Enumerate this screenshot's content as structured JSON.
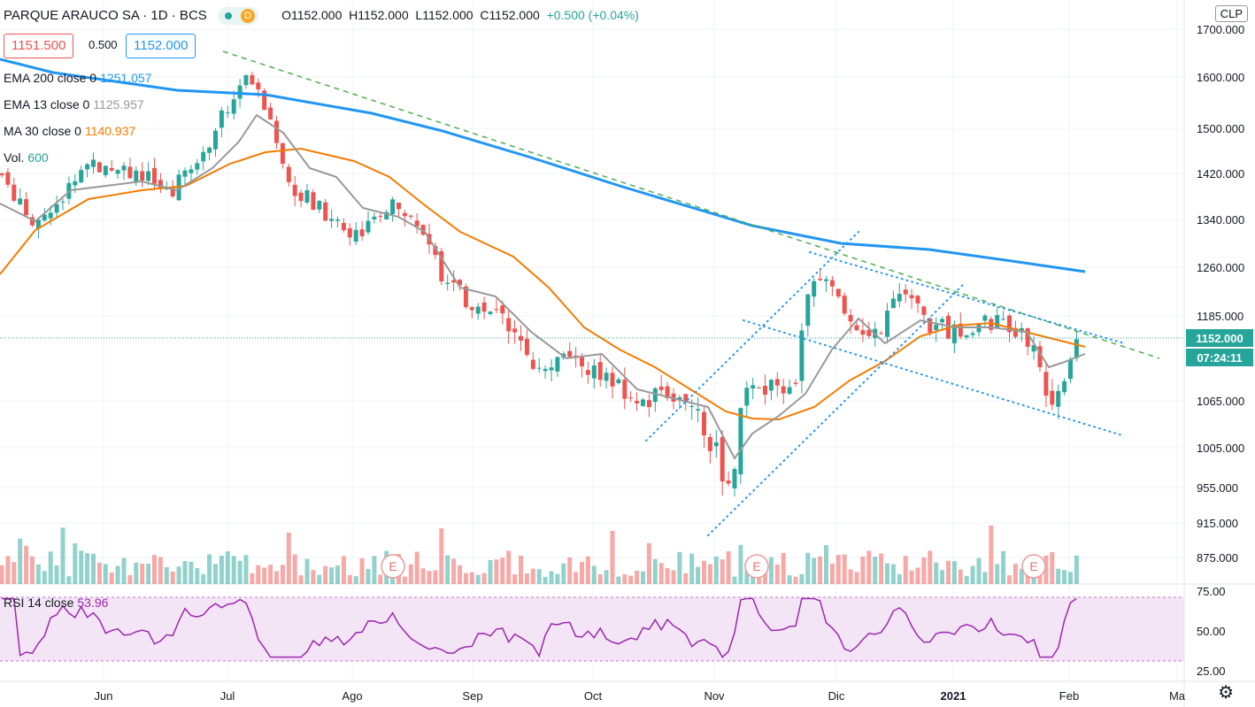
{
  "header": {
    "symbol": "PARQUE ARAUCO SA · 1D · BCS",
    "interval_badge": "D",
    "open": "O1152.000",
    "high": "H1152.000",
    "low": "L1152.000",
    "close": "C1152.000",
    "change": "+0.500 (+0.04%)"
  },
  "trade": {
    "sell": "1151.500",
    "spread": "0.500",
    "buy": "1152.000"
  },
  "currency": "CLP",
  "legends": {
    "ema200_label": "EMA 200 close 0",
    "ema200_value": "1251.057",
    "ema13_label": "EMA 13 close 0",
    "ema13_value": "1125.957",
    "ma30_label": "MA 30 close 0",
    "ma30_value": "1140.937",
    "vol_label": "Vol.",
    "vol_value": "600",
    "rsi_label": "RSI 14 close",
    "rsi_value": "53.96"
  },
  "price_tag": "1152.000",
  "countdown": "07:24:11",
  "colors": {
    "up": "#26a69a",
    "down": "#ef5350",
    "ema200": "#2196f3",
    "ema13": "#999999",
    "ma30": "#f57c00",
    "rsi": "#9c27b0",
    "trend": "#4caf50",
    "channel": "#2196f3"
  },
  "chart_data": {
    "type": "candlestick",
    "title": "PARQUE ARAUCO SA · 1D · BCS",
    "y_ticks": [
      "1700.000",
      "1600.000",
      "1500.000",
      "1420.000",
      "1340.000",
      "1260.000",
      "1185.000",
      "1065.000",
      "1005.000",
      "955.000",
      "915.000",
      "875.000"
    ],
    "x_ticks": [
      "Jun",
      "Jul",
      "Ago",
      "Sep",
      "Oct",
      "Nov",
      "Dic",
      "2021",
      "Feb",
      "Ma"
    ],
    "rsi_ticks": [
      "75.00",
      "50.00",
      "25.00"
    ],
    "events": [
      "E",
      "E",
      "E"
    ],
    "ylim": [
      840,
      1720
    ],
    "last_price": 1152,
    "series": [
      {
        "name": "EMA 200",
        "values_approx": [
          1640,
          1610,
          1580,
          1560,
          1530,
          1500,
          1460,
          1420,
          1380,
          1340,
          1300,
          1280,
          1265,
          1251
        ]
      },
      {
        "name": "EMA 13",
        "values_approx": [
          1350,
          1390,
          1470,
          1440,
          1320,
          1190,
          1090,
          1040,
          990,
          1130,
          1180,
          1160,
          1130,
          1126
        ]
      },
      {
        "name": "MA 30",
        "values_approx": [
          1260,
          1370,
          1430,
          1440,
          1350,
          1230,
          1120,
          1060,
          1020,
          1060,
          1150,
          1160,
          1150,
          1141
        ]
      }
    ],
    "rsi_range": [
      0,
      100
    ],
    "rsi_last": 53.96
  }
}
